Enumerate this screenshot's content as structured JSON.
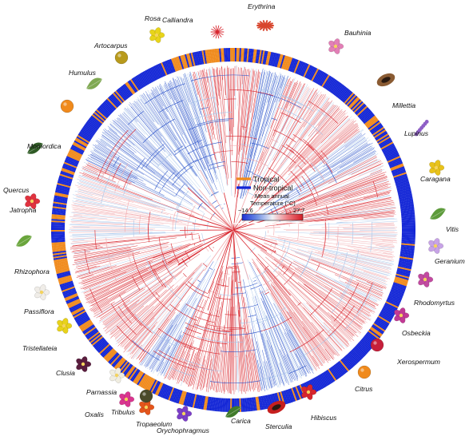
{
  "legend": {
    "tropical_label": "Tropical",
    "nontropical_label": "Non-tropical",
    "colorbar_title_line1": "Mean annual",
    "colorbar_title_line2": "Temperature (°C)",
    "colorbar_min": "−14.6",
    "colorbar_max": "27.7"
  },
  "colors": {
    "tropical": "#f08a1c",
    "nontropical": "#1326d6",
    "warm": "#d8262e",
    "cool": "#2a52c9",
    "pale_warm": "#f2a9ad",
    "pale_cool": "#a9c6ea"
  },
  "genera": [
    {
      "name": "Calliandra",
      "icon": "red-puff-flower-icon"
    },
    {
      "name": "Erythrina",
      "icon": "red-claw-flower-icon"
    },
    {
      "name": "Bauhinia",
      "icon": "pink-orchid-tree-flower-icon"
    },
    {
      "name": "Millettia",
      "icon": "brown-seed-pod-icon"
    },
    {
      "name": "Lupinus",
      "icon": "purple-lupine-spike-icon"
    },
    {
      "name": "Caragana",
      "icon": "yellow-pea-flower-icon"
    },
    {
      "name": "Vitis",
      "icon": "grape-leaf-icon"
    },
    {
      "name": "Geranium",
      "icon": "lilac-geranium-flower-icon"
    },
    {
      "name": "Rhodomyrtus",
      "icon": "pink-myrtle-flower-icon"
    },
    {
      "name": "Osbeckia",
      "icon": "magenta-osbeckia-flower-icon"
    },
    {
      "name": "Xerospermum",
      "icon": "red-lychee-fruit-icon"
    },
    {
      "name": "Citrus",
      "icon": "orange-citrus-fruit-icon"
    },
    {
      "name": "Hibiscus",
      "icon": "red-hibiscus-flower-icon"
    },
    {
      "name": "Sterculia",
      "icon": "red-sterculia-pod-icon"
    },
    {
      "name": "Carica",
      "icon": "papaya-leaf-icon"
    },
    {
      "name": "Orychophragmus",
      "icon": "violet-orychophragmus-flower-icon"
    },
    {
      "name": "Tropaeolum",
      "icon": "orange-nasturtium-flower-icon"
    },
    {
      "name": "Tribulus",
      "icon": "spiny-tribulus-fruit-icon"
    },
    {
      "name": "Oxalis",
      "icon": "pink-oxalis-flower-icon"
    },
    {
      "name": "Parnassia",
      "icon": "white-parnassia-flower-icon"
    },
    {
      "name": "Clusia",
      "icon": "dark-clusia-flower-icon"
    },
    {
      "name": "Tristellateia",
      "icon": "yellow-tristellateia-flower-icon"
    },
    {
      "name": "Passiflora",
      "icon": "white-passion-flower-icon"
    },
    {
      "name": "Rhizophora",
      "icon": "mangrove-propagule-icon"
    },
    {
      "name": "Jatropha",
      "icon": "red-jatropha-flower-icon"
    },
    {
      "name": "Quercus",
      "icon": "oak-leaf-icon"
    },
    {
      "name": "Momordica",
      "icon": "orange-bitter-gourd-icon"
    },
    {
      "name": "Humulus",
      "icon": "hop-cone-icon"
    },
    {
      "name": "Artocarpus",
      "icon": "jackfruit-icon"
    },
    {
      "name": "Rosa",
      "icon": "yellow-rose-flower-icon"
    }
  ]
}
